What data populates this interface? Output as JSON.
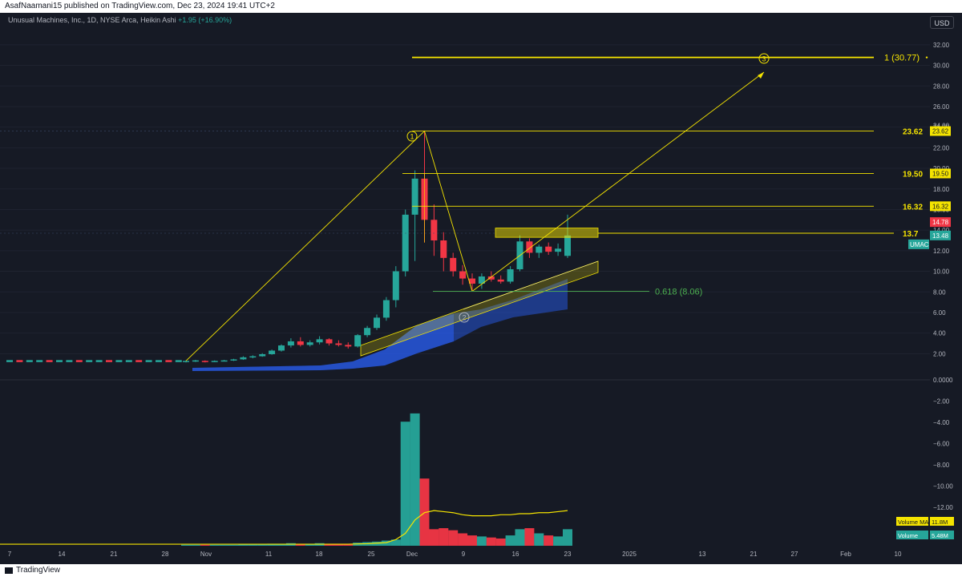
{
  "header": {
    "published": "AsafNaamani15 published on TradingView.com, Dec 23, 2024 19:41 UTC+2"
  },
  "symbol": {
    "description": "Unusual Machines, Inc., 1D, NYSE Arca, Heikin Ashi",
    "change": "+1.95 (+16.90%)"
  },
  "currency": "USD",
  "footer": {
    "brand": "TradingView"
  },
  "colors": {
    "background": "#161a25",
    "up": "#26a69a",
    "down": "#f23645",
    "annotation": "#f5e400",
    "fib_green": "#4caf50",
    "ema_band": "#2962ff"
  },
  "chart_data": [
    {
      "type": "candlestick",
      "title": "Unusual Machines, Inc., 1D, NYSE Arca, Heikin Ashi",
      "ylabel": "USD",
      "ylim": [
        1.0,
        33.0
      ],
      "y_ticks": [
        "32.00",
        "30.00",
        "28.00",
        "26.00",
        "24.00",
        "22.00",
        "20.00",
        "18.00",
        "16.00",
        "14.00",
        "12.00",
        "10.00",
        "8.00",
        "6.00",
        "4.00",
        "2.00"
      ],
      "x_ticks": [
        "7",
        "14",
        "21",
        "28",
        "Nov",
        "11",
        "18",
        "25",
        "Dec",
        "9",
        "16",
        "23",
        "2025",
        "13",
        "21",
        "27",
        "Feb",
        "10"
      ],
      "candles": [
        {
          "o": 1.25,
          "h": 1.35,
          "l": 1.15,
          "c": 1.3
        },
        {
          "o": 1.3,
          "h": 1.4,
          "l": 1.2,
          "c": 1.35
        },
        {
          "o": 1.3,
          "h": 1.35,
          "l": 1.15,
          "c": 1.25
        },
        {
          "o": 1.25,
          "h": 1.35,
          "l": 1.2,
          "c": 1.3
        },
        {
          "o": 1.3,
          "h": 1.4,
          "l": 1.25,
          "c": 1.35
        },
        {
          "o": 1.35,
          "h": 1.5,
          "l": 1.3,
          "c": 1.45
        },
        {
          "o": 1.45,
          "h": 1.75,
          "l": 1.4,
          "c": 1.65
        },
        {
          "o": 1.65,
          "h": 1.85,
          "l": 1.55,
          "c": 1.75
        },
        {
          "o": 1.75,
          "h": 2.05,
          "l": 1.7,
          "c": 1.95
        },
        {
          "o": 1.95,
          "h": 2.4,
          "l": 1.9,
          "c": 2.3
        },
        {
          "o": 2.3,
          "h": 2.9,
          "l": 2.2,
          "c": 2.8
        },
        {
          "o": 2.8,
          "h": 3.5,
          "l": 2.6,
          "c": 3.2
        },
        {
          "o": 3.2,
          "h": 3.6,
          "l": 2.7,
          "c": 2.85
        },
        {
          "o": 2.85,
          "h": 3.3,
          "l": 2.7,
          "c": 3.1
        },
        {
          "o": 3.1,
          "h": 3.7,
          "l": 2.9,
          "c": 3.4
        },
        {
          "o": 3.4,
          "h": 3.5,
          "l": 2.8,
          "c": 3.0
        },
        {
          "o": 3.0,
          "h": 3.3,
          "l": 2.7,
          "c": 2.85
        },
        {
          "o": 2.85,
          "h": 3.1,
          "l": 2.5,
          "c": 2.7
        },
        {
          "o": 2.7,
          "h": 3.9,
          "l": 2.6,
          "c": 3.8
        },
        {
          "o": 3.8,
          "h": 4.7,
          "l": 3.6,
          "c": 4.5
        },
        {
          "o": 4.5,
          "h": 5.8,
          "l": 4.3,
          "c": 5.5
        },
        {
          "o": 5.5,
          "h": 7.5,
          "l": 5.2,
          "c": 7.2
        },
        {
          "o": 7.2,
          "h": 10.5,
          "l": 6.5,
          "c": 10.0
        },
        {
          "o": 10.0,
          "h": 16.0,
          "l": 9.5,
          "c": 15.5
        },
        {
          "o": 15.5,
          "h": 19.8,
          "l": 11.0,
          "c": 19.0
        },
        {
          "o": 19.0,
          "h": 23.62,
          "l": 12.8,
          "c": 15.0
        },
        {
          "o": 15.0,
          "h": 16.5,
          "l": 11.5,
          "c": 13.0
        },
        {
          "o": 13.0,
          "h": 13.8,
          "l": 10.0,
          "c": 11.3
        },
        {
          "o": 11.3,
          "h": 11.8,
          "l": 9.5,
          "c": 10.0
        },
        {
          "o": 10.0,
          "h": 10.6,
          "l": 8.7,
          "c": 9.3
        },
        {
          "o": 9.3,
          "h": 9.8,
          "l": 8.06,
          "c": 8.8
        },
        {
          "o": 8.8,
          "h": 9.8,
          "l": 8.3,
          "c": 9.5
        },
        {
          "o": 9.5,
          "h": 10.0,
          "l": 9.0,
          "c": 9.2
        },
        {
          "o": 9.2,
          "h": 9.6,
          "l": 8.8,
          "c": 9.0
        },
        {
          "o": 9.0,
          "h": 10.5,
          "l": 8.8,
          "c": 10.2
        },
        {
          "o": 10.2,
          "h": 13.5,
          "l": 10.0,
          "c": 12.9
        },
        {
          "o": 12.9,
          "h": 13.2,
          "l": 11.3,
          "c": 11.8
        },
        {
          "o": 11.8,
          "h": 12.6,
          "l": 11.3,
          "c": 12.4
        },
        {
          "o": 12.4,
          "h": 12.8,
          "l": 11.6,
          "c": 11.9
        },
        {
          "o": 11.9,
          "h": 12.7,
          "l": 11.5,
          "c": 12.2
        },
        {
          "o": 11.5,
          "h": 15.5,
          "l": 11.3,
          "c": 13.48
        }
      ],
      "horizontal_levels": [
        {
          "label": "1 (30.77)",
          "value": 30.77
        },
        {
          "label": "23.62",
          "value": 23.62
        },
        {
          "label": "19.50",
          "value": 19.5
        },
        {
          "label": "16.32",
          "value": 16.32
        },
        {
          "label": "0.618 (8.06)",
          "value": 8.06
        }
      ],
      "price_labels": [
        {
          "text": "23.62",
          "value": 23.62
        },
        {
          "text": "19.50",
          "value": 19.5
        },
        {
          "text": "16.32",
          "value": 16.32
        },
        {
          "text": "14.78",
          "value": 14.78
        },
        {
          "text": "13.48",
          "value": 13.48
        }
      ],
      "symbol_tag": "UMAC",
      "wave_labels": [
        "1",
        "2",
        "3"
      ],
      "partial_level_label": "13.7",
      "partial_axis_tick": "24.00"
    },
    {
      "type": "bar",
      "title": "Volume",
      "ylim": [
        0,
        13.5
      ],
      "y_ticks": [
        "0.0000",
        "−2.00",
        "−4.00",
        "−6.00",
        "−8.00",
        "−10.00",
        "−12.00"
      ],
      "values": [
        0.1,
        0.1,
        0.1,
        0.1,
        0.1,
        0.1,
        0.15,
        0.15,
        0.15,
        0.2,
        0.2,
        0.25,
        0.2,
        0.2,
        0.25,
        0.2,
        0.2,
        0.2,
        0.3,
        0.35,
        0.4,
        0.5,
        0.6,
        12.0,
        12.8,
        6.5,
        1.6,
        1.7,
        1.5,
        1.2,
        1.0,
        0.9,
        0.8,
        0.7,
        1.0,
        1.6,
        1.7,
        1.2,
        1.0,
        0.9,
        1.6
      ],
      "up": [
        true,
        true,
        false,
        true,
        true,
        true,
        true,
        true,
        true,
        true,
        true,
        true,
        false,
        true,
        true,
        false,
        false,
        false,
        true,
        true,
        true,
        true,
        true,
        true,
        true,
        false,
        false,
        false,
        false,
        false,
        false,
        true,
        false,
        false,
        true,
        true,
        false,
        true,
        false,
        true,
        true
      ],
      "ma_values": [
        0.15,
        0.15,
        0.15,
        0.15,
        0.15,
        0.15,
        0.15,
        0.15,
        0.15,
        0.15,
        0.15,
        0.15,
        0.15,
        0.15,
        0.15,
        0.15,
        0.15,
        0.15,
        0.18,
        0.2,
        0.25,
        0.3,
        0.6,
        1.2,
        2.5,
        3.2,
        3.4,
        3.3,
        3.2,
        3.0,
        2.9,
        2.9,
        2.9,
        3.0,
        3.0,
        3.1,
        3.1,
        3.2,
        3.2,
        3.3,
        3.4
      ],
      "legend": [
        {
          "name": "Volume MA",
          "value": "11.8M"
        },
        {
          "name": "Volume",
          "value": "5.48M"
        }
      ]
    }
  ]
}
